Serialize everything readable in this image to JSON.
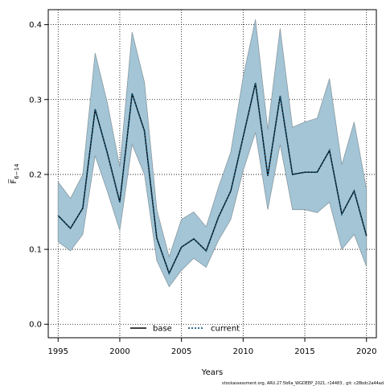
{
  "chart_data": {
    "type": "line",
    "xlabel": "Years",
    "ylabel": "F̅",
    "ylabel_sub": "6−14",
    "xlim": [
      1994.2,
      2020.8
    ],
    "ylim": [
      -0.018,
      0.42
    ],
    "x_ticks": [
      1995,
      2000,
      2005,
      2010,
      2015,
      2020
    ],
    "y_ticks": [
      0.0,
      0.1,
      0.2,
      0.3,
      0.4
    ],
    "y_tick_labels": [
      "0.0",
      "0.1",
      "0.2",
      "0.3",
      "0.4"
    ],
    "grid": true,
    "legend_position": "bottom-center",
    "x": [
      1995,
      1996,
      1997,
      1998,
      1999,
      2000,
      2001,
      2002,
      2003,
      2004,
      2005,
      2006,
      2007,
      2008,
      2009,
      2010,
      2011,
      2012,
      2013,
      2014,
      2015,
      2016,
      2017,
      2018,
      2019,
      2020
    ],
    "series": [
      {
        "name": "base",
        "style": "solid",
        "color": "#000000",
        "values": [
          0.145,
          0.128,
          0.155,
          0.287,
          0.228,
          0.163,
          0.308,
          0.258,
          0.115,
          0.068,
          0.103,
          0.114,
          0.098,
          0.143,
          0.178,
          0.25,
          0.322,
          0.198,
          0.305,
          0.2,
          0.203,
          0.203,
          0.232,
          0.147,
          0.178,
          0.118
        ]
      },
      {
        "name": "current",
        "style": "dotted",
        "color": "#1a5a7a",
        "values": [
          0.145,
          0.128,
          0.155,
          0.287,
          0.228,
          0.163,
          0.308,
          0.258,
          0.115,
          0.068,
          0.103,
          0.114,
          0.098,
          0.143,
          0.178,
          0.25,
          0.322,
          0.198,
          0.305,
          0.2,
          0.203,
          0.203,
          0.232,
          0.147,
          0.178,
          0.118
        ]
      }
    ],
    "band": {
      "upper": [
        0.19,
        0.168,
        0.2,
        0.362,
        0.295,
        0.21,
        0.39,
        0.323,
        0.153,
        0.09,
        0.14,
        0.15,
        0.13,
        0.183,
        0.23,
        0.33,
        0.407,
        0.26,
        0.395,
        0.263,
        0.27,
        0.275,
        0.328,
        0.213,
        0.27,
        0.18
      ],
      "lower": [
        0.11,
        0.098,
        0.12,
        0.225,
        0.177,
        0.125,
        0.24,
        0.2,
        0.085,
        0.05,
        0.072,
        0.088,
        0.076,
        0.112,
        0.14,
        0.205,
        0.256,
        0.153,
        0.24,
        0.153,
        0.153,
        0.149,
        0.163,
        0.1,
        0.12,
        0.077
      ],
      "fill_color": "#a3c5d6",
      "edge_color": "#8a9aa2"
    },
    "footer": "stockassessment.org, ARU.27.5b6a_WGDEEP_2021, r14483 , git: c28bdc2a44ad"
  }
}
